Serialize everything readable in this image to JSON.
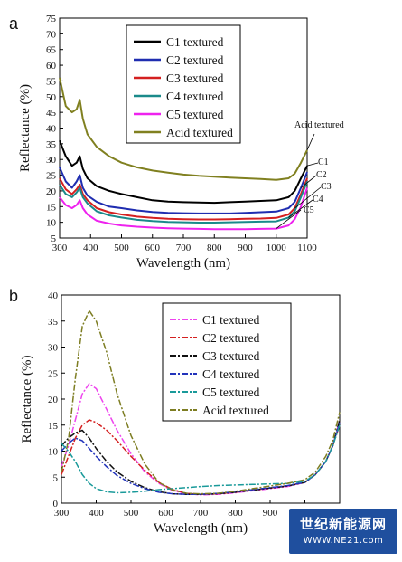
{
  "chart_data": [
    {
      "type": "line",
      "panel_label": "a",
      "xlabel": "Wavelength (nm)",
      "ylabel": "Reflectance (%)",
      "xlim": [
        300,
        1100
      ],
      "ylim": [
        5,
        75
      ],
      "xticks": [
        300,
        400,
        500,
        600,
        700,
        800,
        900,
        1000,
        1100
      ],
      "yticks": [
        5,
        10,
        15,
        20,
        25,
        30,
        35,
        40,
        45,
        50,
        55,
        60,
        65,
        70,
        75
      ],
      "legend_position": "top-center",
      "series": [
        {
          "name": "C1 textured",
          "color": "#000000",
          "x": [
            300,
            320,
            340,
            355,
            365,
            375,
            390,
            420,
            460,
            500,
            550,
            600,
            650,
            700,
            750,
            800,
            850,
            900,
            950,
            1000,
            1040,
            1060,
            1080,
            1100
          ],
          "y": [
            36,
            31,
            28,
            29,
            31,
            27,
            24,
            21.5,
            20,
            19,
            18,
            17,
            16.6,
            16.4,
            16.3,
            16.2,
            16.4,
            16.6,
            16.8,
            17,
            18,
            20,
            24,
            28
          ],
          "end_label": "C1"
        },
        {
          "name": "C2 textured",
          "color": "#1f2db0",
          "x": [
            300,
            320,
            340,
            355,
            365,
            375,
            390,
            420,
            460,
            500,
            550,
            600,
            650,
            700,
            750,
            800,
            850,
            900,
            950,
            1000,
            1040,
            1060,
            1080,
            1100
          ],
          "y": [
            27.5,
            23,
            21,
            23,
            25,
            21,
            18.5,
            16.5,
            15,
            14.5,
            13.8,
            13.3,
            13,
            12.9,
            12.8,
            12.8,
            12.8,
            13,
            13.2,
            13.4,
            14.5,
            16.5,
            21,
            26
          ],
          "end_label": "C2"
        },
        {
          "name": "C3 textured",
          "color": "#d42020",
          "x": [
            300,
            320,
            340,
            355,
            365,
            375,
            390,
            420,
            460,
            500,
            550,
            600,
            650,
            700,
            750,
            800,
            850,
            900,
            950,
            1000,
            1040,
            1060,
            1080,
            1100
          ],
          "y": [
            24,
            20.5,
            19,
            20.5,
            22,
            19,
            17,
            14.5,
            13.2,
            12.5,
            11.8,
            11.4,
            11.1,
            11,
            10.9,
            10.9,
            11,
            11.1,
            11.2,
            11.4,
            12.5,
            14.5,
            19,
            24
          ],
          "end_label": "C3"
        },
        {
          "name": "C4 textured",
          "color": "#1a8a8a",
          "x": [
            300,
            320,
            340,
            355,
            365,
            375,
            390,
            420,
            460,
            500,
            550,
            600,
            650,
            700,
            750,
            800,
            850,
            900,
            950,
            1000,
            1040,
            1060,
            1080,
            1100
          ],
          "y": [
            22,
            19,
            18,
            19.5,
            21,
            18,
            16,
            13.5,
            12.2,
            11.5,
            10.8,
            10.4,
            10.1,
            10,
            9.9,
            9.9,
            10,
            10.1,
            10.2,
            10.3,
            11.5,
            13.5,
            18,
            23
          ],
          "end_label": "C4"
        },
        {
          "name": "C5 textured",
          "color": "#ee22ee",
          "x": [
            300,
            320,
            340,
            355,
            365,
            375,
            390,
            420,
            460,
            500,
            550,
            600,
            650,
            700,
            750,
            800,
            850,
            900,
            950,
            1000,
            1040,
            1060,
            1080,
            1100
          ],
          "y": [
            18,
            15.5,
            14.5,
            15.5,
            17,
            14.5,
            12.5,
            10.5,
            9.6,
            9,
            8.6,
            8.3,
            8.1,
            8,
            7.9,
            7.8,
            7.8,
            7.8,
            7.9,
            8,
            9,
            11,
            15,
            21
          ],
          "end_label": "C5"
        },
        {
          "name": "Acid textured",
          "color": "#808020",
          "x": [
            300,
            320,
            340,
            355,
            365,
            375,
            390,
            420,
            460,
            500,
            550,
            600,
            650,
            700,
            750,
            800,
            850,
            900,
            950,
            1000,
            1040,
            1060,
            1080,
            1100
          ],
          "y": [
            56,
            47,
            45,
            46,
            49,
            43,
            38,
            34,
            31,
            29,
            27.5,
            26.5,
            25.8,
            25.2,
            24.8,
            24.5,
            24.2,
            24,
            23.8,
            23.5,
            24,
            25.5,
            29,
            33
          ],
          "end_label": "Acid textured"
        }
      ]
    },
    {
      "type": "line",
      "panel_label": "b",
      "xlabel": "Wavelength (nm)",
      "ylabel": "Reflectance (%)",
      "xlim": [
        300,
        1100
      ],
      "ylim": [
        0,
        40
      ],
      "xticks": [
        300,
        400,
        500,
        600,
        700,
        800,
        900,
        1000,
        1100
      ],
      "yticks": [
        0,
        5,
        10,
        15,
        20,
        25,
        30,
        35,
        40
      ],
      "legend_position": "top-right",
      "series": [
        {
          "name": "C1 textured",
          "color": "#ee44ee",
          "x": [
            300,
            320,
            340,
            360,
            380,
            400,
            430,
            460,
            500,
            540,
            580,
            620,
            660,
            700,
            750,
            800,
            850,
            900,
            950,
            1000,
            1030,
            1060,
            1080,
            1100
          ],
          "y": [
            7,
            11,
            16,
            21,
            23,
            22,
            18,
            14,
            9.5,
            6,
            3.8,
            2.4,
            1.8,
            1.6,
            1.7,
            2,
            2.4,
            2.8,
            3.2,
            4,
            5.5,
            8,
            11,
            16
          ]
        },
        {
          "name": "C2 textured",
          "color": "#d42020",
          "x": [
            300,
            320,
            340,
            360,
            380,
            400,
            430,
            460,
            500,
            540,
            580,
            620,
            660,
            700,
            750,
            800,
            850,
            900,
            950,
            1000,
            1030,
            1060,
            1080,
            1100
          ],
          "y": [
            5.5,
            9,
            12.5,
            15,
            16,
            15.5,
            14,
            12,
            9,
            6.3,
            4,
            2.6,
            1.9,
            1.7,
            1.8,
            2.1,
            2.5,
            2.9,
            3.3,
            4,
            5.5,
            8,
            11,
            15
          ]
        },
        {
          "name": "C3 textured",
          "color": "#111111",
          "x": [
            300,
            320,
            340,
            360,
            380,
            400,
            430,
            460,
            500,
            540,
            580,
            620,
            660,
            700,
            750,
            800,
            850,
            900,
            950,
            1000,
            1030,
            1060,
            1080,
            1100
          ],
          "y": [
            11,
            12.5,
            13.5,
            14,
            12.5,
            10.5,
            8,
            6,
            4.2,
            3,
            2.2,
            1.8,
            1.7,
            1.7,
            1.8,
            2.1,
            2.5,
            2.9,
            3.3,
            4,
            5.5,
            8,
            11,
            16
          ]
        },
        {
          "name": "C4 textured",
          "color": "#2233bb",
          "x": [
            300,
            320,
            340,
            360,
            380,
            400,
            430,
            460,
            500,
            540,
            580,
            620,
            660,
            700,
            750,
            800,
            850,
            900,
            950,
            1000,
            1030,
            1060,
            1080,
            1100
          ],
          "y": [
            10,
            11.5,
            12.5,
            12,
            10.5,
            9,
            7,
            5.3,
            3.8,
            2.8,
            2.1,
            1.8,
            1.7,
            1.7,
            1.9,
            2.2,
            2.6,
            3,
            3.4,
            4,
            5.5,
            8,
            11,
            15.5
          ]
        },
        {
          "name": "C5 textured",
          "color": "#1a9a9a",
          "x": [
            300,
            320,
            340,
            360,
            380,
            400,
            430,
            460,
            500,
            540,
            580,
            620,
            660,
            700,
            750,
            800,
            850,
            900,
            950,
            1000,
            1030,
            1060,
            1080,
            1100
          ],
          "y": [
            11.5,
            10,
            8,
            5.5,
            3.8,
            2.8,
            2.2,
            2,
            2.1,
            2.3,
            2.6,
            2.8,
            3,
            3.2,
            3.4,
            3.5,
            3.6,
            3.7,
            3.8,
            4.2,
            5.5,
            8,
            11,
            15
          ]
        },
        {
          "name": "Acid textured",
          "color": "#7d7d22",
          "x": [
            300,
            320,
            340,
            360,
            380,
            400,
            430,
            460,
            500,
            540,
            580,
            620,
            660,
            700,
            750,
            800,
            850,
            900,
            950,
            1000,
            1030,
            1060,
            1080,
            1100
          ],
          "y": [
            6,
            12,
            24,
            34,
            37,
            35,
            29,
            21,
            13,
            7.5,
            4,
            2.5,
            1.9,
            1.8,
            1.9,
            2.3,
            2.8,
            3.3,
            3.8,
            4.5,
            6,
            9,
            12,
            17.5
          ]
        }
      ]
    }
  ],
  "watermark": {
    "cn": "世纪新能源网",
    "url": "WWW.NE21.com"
  }
}
